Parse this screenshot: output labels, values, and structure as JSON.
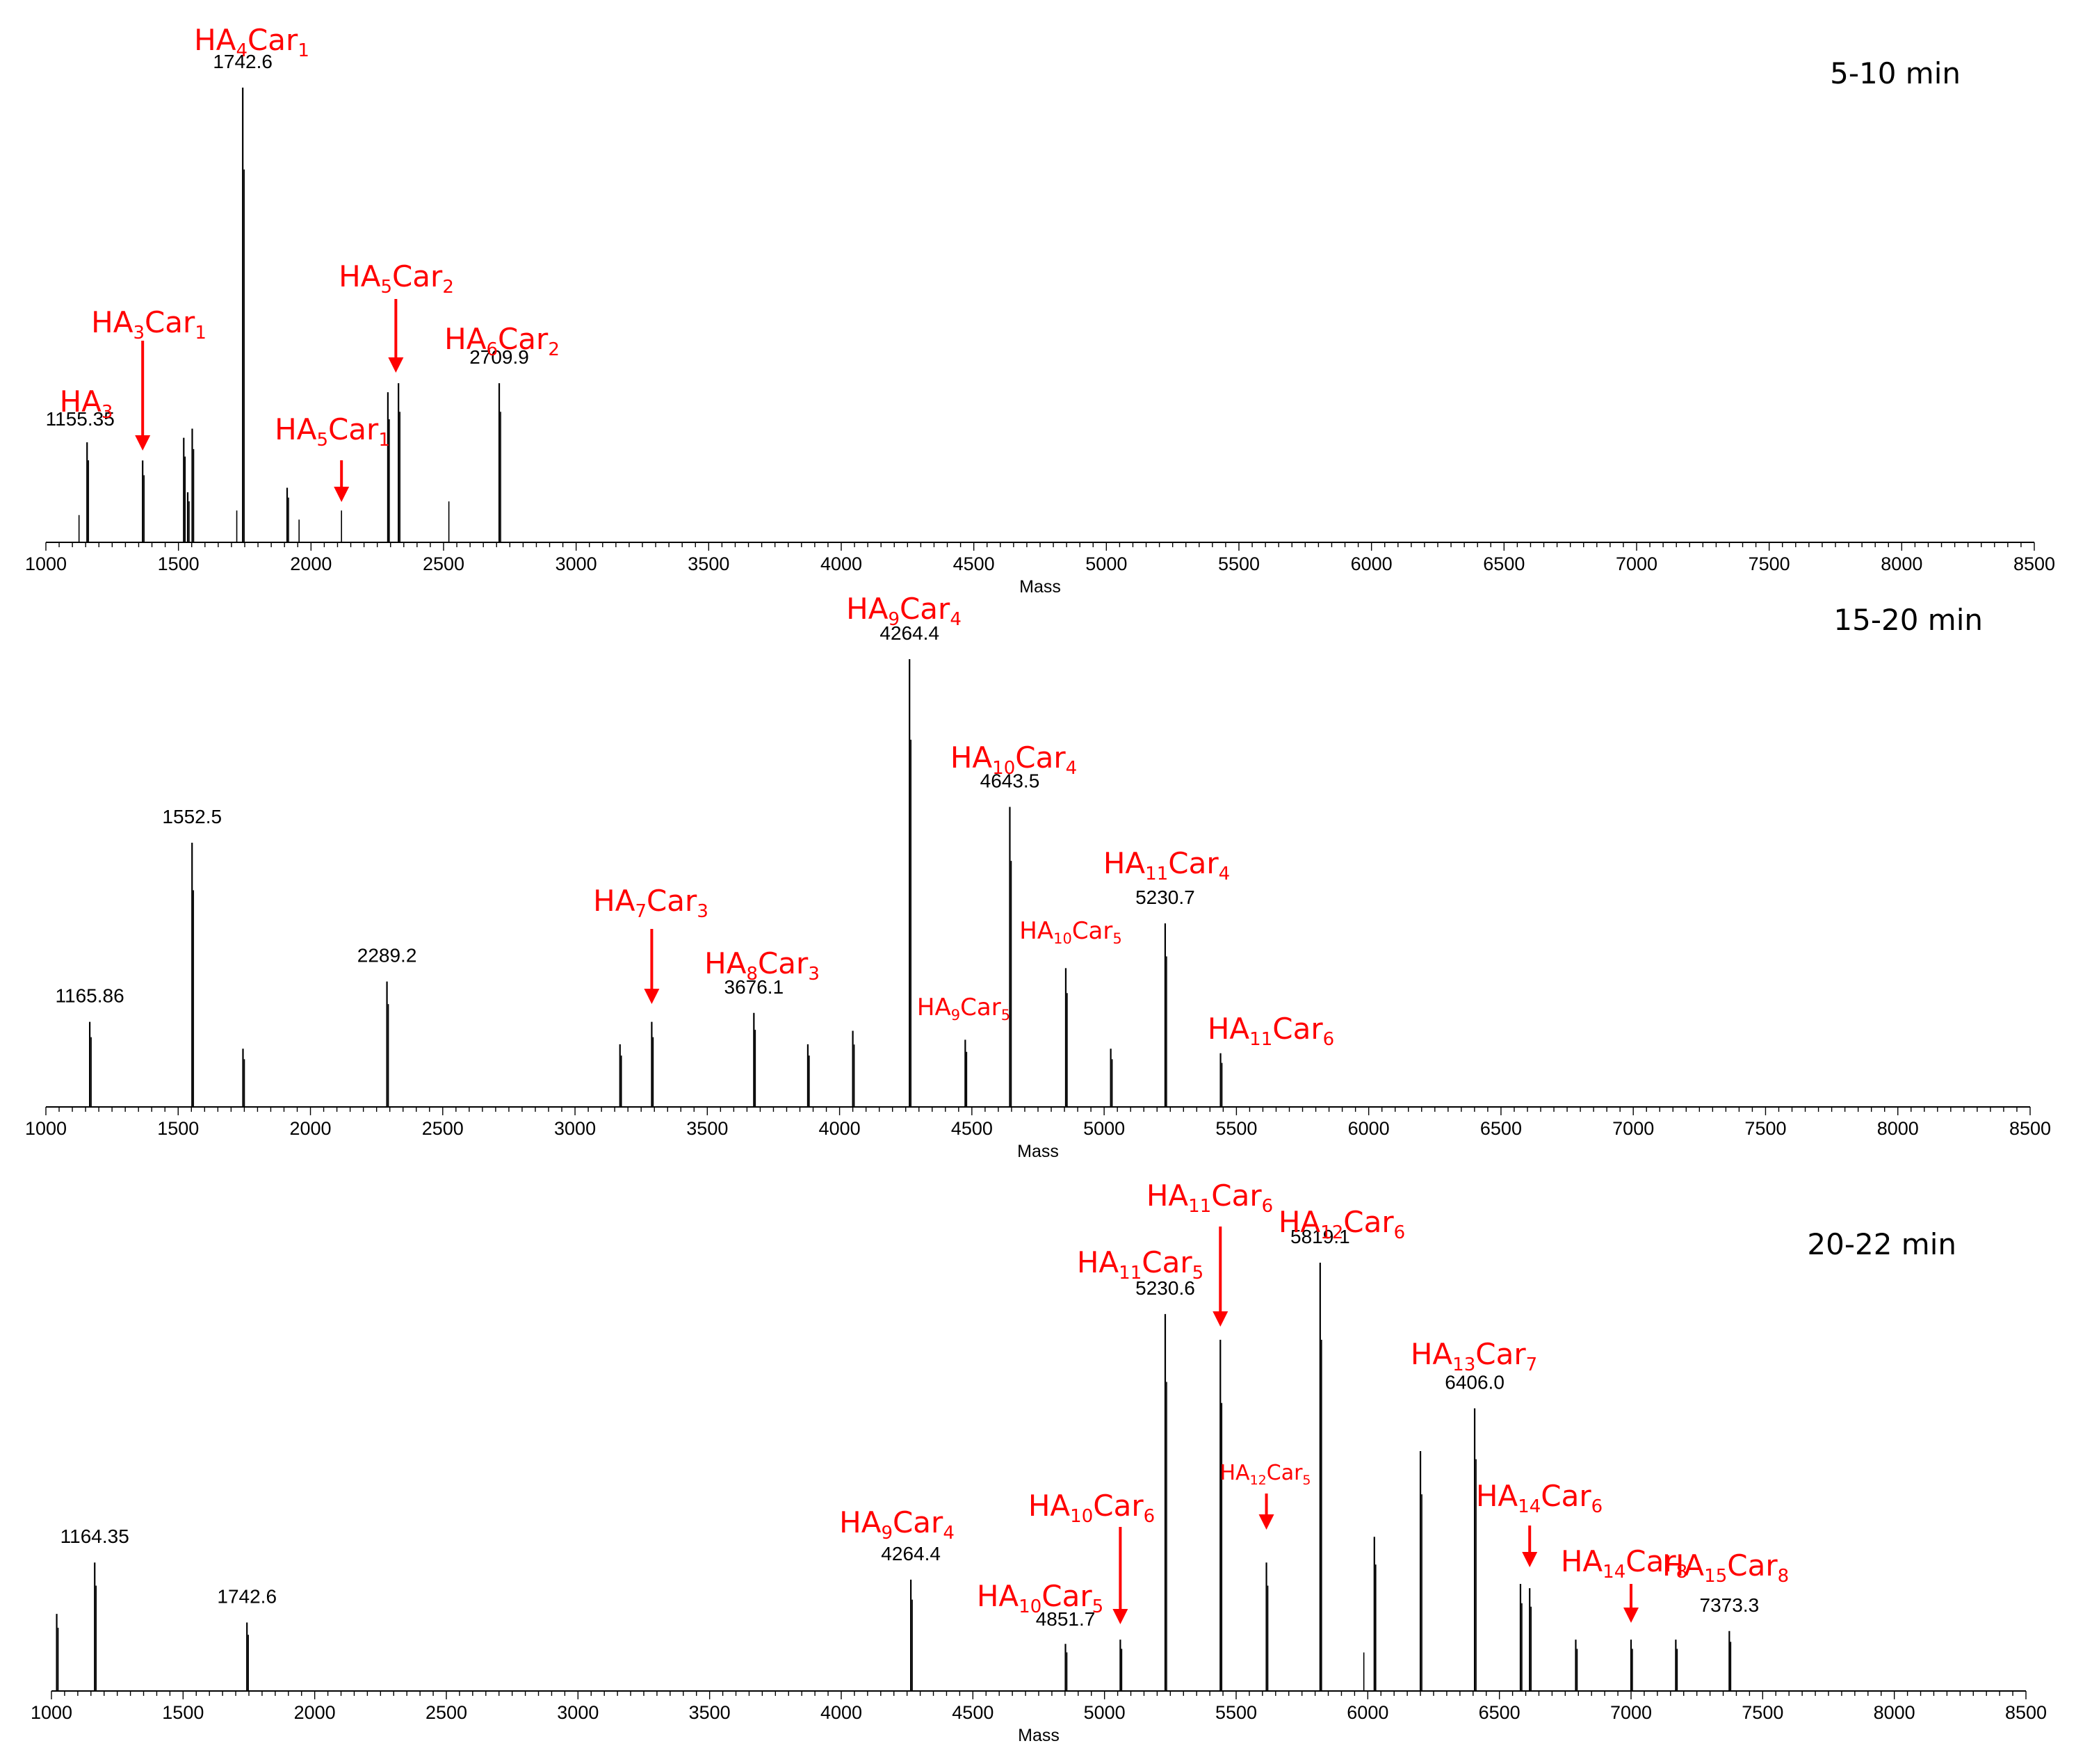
{
  "colors": {
    "annotation": "#ff0000",
    "spectrum": "#000000",
    "background": "#ffffff"
  },
  "chart_data": [
    {
      "type": "bar",
      "title": "5-10 min",
      "xlabel": "Mass",
      "xlim": [
        1000,
        8500
      ],
      "xticks": [
        "1000",
        "1500",
        "2000",
        "2500",
        "3000",
        "3500",
        "4000",
        "4500",
        "5000",
        "5500",
        "6000",
        "6500",
        "7000",
        "7500",
        "8000",
        "8500"
      ],
      "ylim": [
        0,
        100
      ],
      "peaks": [
        {
          "x": 1125,
          "y": 6
        },
        {
          "x": 1155.35,
          "y": 22,
          "label": "1155.35"
        },
        {
          "x": 1365,
          "y": 18
        },
        {
          "x": 1520,
          "y": 23
        },
        {
          "x": 1535,
          "y": 11
        },
        {
          "x": 1552,
          "y": 25
        },
        {
          "x": 1720,
          "y": 7
        },
        {
          "x": 1742.6,
          "y": 100,
          "label": "1742.6"
        },
        {
          "x": 1910,
          "y": 12
        },
        {
          "x": 1955,
          "y": 5
        },
        {
          "x": 2115,
          "y": 7
        },
        {
          "x": 2290,
          "y": 33
        },
        {
          "x": 2330,
          "y": 35
        },
        {
          "x": 2520,
          "y": 9
        },
        {
          "x": 2709.9,
          "y": 35,
          "label": "2709.9"
        }
      ],
      "annotations": [
        {
          "text": "HA3",
          "parts": [
            [
              "HA",
              ""
            ],
            [
              "3",
              "sub"
            ]
          ],
          "anchor_x": 1155.35,
          "arrow": false
        },
        {
          "text": "HA3Car1",
          "parts": [
            [
              "HA",
              ""
            ],
            [
              "3",
              "sub"
            ],
            [
              "Car",
              ""
            ],
            [
              "1",
              "sub"
            ]
          ],
          "anchor_x": 1365,
          "arrow": true
        },
        {
          "text": "HA4Car1",
          "parts": [
            [
              "HA",
              ""
            ],
            [
              "4",
              "sub"
            ],
            [
              "Car",
              ""
            ],
            [
              "1",
              "sub"
            ]
          ],
          "anchor_x": 1742.6,
          "arrow": false
        },
        {
          "text": "HA5Car1",
          "parts": [
            [
              "HA",
              ""
            ],
            [
              "5",
              "sub"
            ],
            [
              "Car",
              ""
            ],
            [
              "1",
              "sub"
            ]
          ],
          "anchor_x": 2115,
          "arrow": true
        },
        {
          "text": "HA5Car2",
          "parts": [
            [
              "HA",
              ""
            ],
            [
              "5",
              "sub"
            ],
            [
              "Car",
              ""
            ],
            [
              "2",
              "sub"
            ]
          ],
          "anchor_x": 2320,
          "arrow": true
        },
        {
          "text": "HA6Car2",
          "parts": [
            [
              "HA",
              ""
            ],
            [
              "6",
              "sub"
            ],
            [
              "Car",
              ""
            ],
            [
              "2",
              "sub"
            ]
          ],
          "anchor_x": 2709.9,
          "arrow": false
        }
      ]
    },
    {
      "type": "bar",
      "title": "15-20 min",
      "xlabel": "Mass",
      "xlim": [
        1000,
        8500
      ],
      "xticks": [
        "1000",
        "1500",
        "2000",
        "2500",
        "3000",
        "3500",
        "4000",
        "4500",
        "5000",
        "5500",
        "6000",
        "6500",
        "7000",
        "7500",
        "8000",
        "8500"
      ],
      "ylim": [
        0,
        100
      ],
      "peaks": [
        {
          "x": 1165.86,
          "y": 19,
          "label": "1165.86"
        },
        {
          "x": 1552.5,
          "y": 59,
          "label": "1552.5"
        },
        {
          "x": 1745,
          "y": 13
        },
        {
          "x": 2289.2,
          "y": 28,
          "label": "2289.2"
        },
        {
          "x": 3170,
          "y": 14
        },
        {
          "x": 3290,
          "y": 19
        },
        {
          "x": 3676.1,
          "y": 21,
          "label": "3676.1"
        },
        {
          "x": 3880,
          "y": 14
        },
        {
          "x": 4050,
          "y": 17
        },
        {
          "x": 4264.4,
          "y": 100,
          "label": "4264.4"
        },
        {
          "x": 4475,
          "y": 15
        },
        {
          "x": 4643.5,
          "y": 67,
          "label": "4643.5"
        },
        {
          "x": 4855,
          "y": 31
        },
        {
          "x": 5025,
          "y": 13
        },
        {
          "x": 5230.7,
          "y": 41,
          "label": "5230.7"
        },
        {
          "x": 5440,
          "y": 12
        }
      ],
      "annotations": [
        {
          "text": "HA7Car3",
          "parts": [
            [
              "HA",
              ""
            ],
            [
              "7",
              "sub"
            ],
            [
              "Car",
              ""
            ],
            [
              "3",
              "sub"
            ]
          ],
          "anchor_x": 3290,
          "arrow": true
        },
        {
          "text": "HA8Car3",
          "parts": [
            [
              "HA",
              ""
            ],
            [
              "8",
              "sub"
            ],
            [
              "Car",
              ""
            ],
            [
              "3",
              "sub"
            ]
          ],
          "anchor_x": 3676.1,
          "arrow": false
        },
        {
          "text": "HA9Car4",
          "parts": [
            [
              "HA",
              ""
            ],
            [
              "9",
              "sub"
            ],
            [
              "Car",
              ""
            ],
            [
              "4",
              "sub"
            ]
          ],
          "anchor_x": 4264.4,
          "arrow": false
        },
        {
          "text": "HA9Car5",
          "parts": [
            [
              "HA",
              ""
            ],
            [
              "9",
              "sub"
            ],
            [
              "Car",
              ""
            ],
            [
              "5",
              "sub"
            ]
          ],
          "anchor_x": 4475,
          "arrow": false
        },
        {
          "text": "HA10Car4",
          "parts": [
            [
              "HA",
              ""
            ],
            [
              "10",
              "sub"
            ],
            [
              "Car",
              ""
            ],
            [
              "4",
              "sub"
            ]
          ],
          "anchor_x": 4643.5,
          "arrow": false
        },
        {
          "text": "HA10Car5",
          "parts": [
            [
              "HA",
              ""
            ],
            [
              "10",
              "sub"
            ],
            [
              "Car",
              ""
            ],
            [
              "5",
              "sub"
            ]
          ],
          "anchor_x": 4855,
          "arrow": false
        },
        {
          "text": "HA11Car4",
          "parts": [
            [
              "HA",
              ""
            ],
            [
              "11",
              "sub"
            ],
            [
              "Car",
              ""
            ],
            [
              "4",
              "sub"
            ]
          ],
          "anchor_x": 5230.7,
          "arrow": false
        },
        {
          "text": "HA11Car6",
          "parts": [
            [
              "HA",
              ""
            ],
            [
              "11",
              "sub"
            ],
            [
              "Car",
              ""
            ],
            [
              "6",
              "sub"
            ]
          ],
          "anchor_x": 5440,
          "arrow": false
        }
      ]
    },
    {
      "type": "bar",
      "title": "20-22 min",
      "xlabel": "Mass",
      "xlim": [
        1000,
        8500
      ],
      "xticks": [
        "1000",
        "1500",
        "2000",
        "2500",
        "3000",
        "3500",
        "4000",
        "4500",
        "5000",
        "5500",
        "6000",
        "6500",
        "7000",
        "7500",
        "8000",
        "8500"
      ],
      "ylim": [
        0,
        100
      ],
      "peaks": [
        {
          "x": 1020,
          "y": 18
        },
        {
          "x": 1164.35,
          "y": 30,
          "label": "1164.35"
        },
        {
          "x": 1742.6,
          "y": 16,
          "label": "1742.6"
        },
        {
          "x": 4264.4,
          "y": 26,
          "label": "4264.4"
        },
        {
          "x": 4851.7,
          "y": 11,
          "label": "4851.7"
        },
        {
          "x": 5060,
          "y": 12
        },
        {
          "x": 5230.6,
          "y": 88,
          "label": "5230.6"
        },
        {
          "x": 5440,
          "y": 82
        },
        {
          "x": 5615,
          "y": 30
        },
        {
          "x": 5819.1,
          "y": 100,
          "label": "5819.1"
        },
        {
          "x": 5985,
          "y": 9
        },
        {
          "x": 6025,
          "y": 36
        },
        {
          "x": 6200,
          "y": 56
        },
        {
          "x": 6406.0,
          "y": 66,
          "label": "6406.0"
        },
        {
          "x": 6580,
          "y": 25
        },
        {
          "x": 6615,
          "y": 24
        },
        {
          "x": 6790,
          "y": 12
        },
        {
          "x": 7000,
          "y": 12
        },
        {
          "x": 7170,
          "y": 12
        },
        {
          "x": 7373.3,
          "y": 14,
          "label": "7373.3"
        }
      ],
      "annotations": [
        {
          "text": "HA9Car4",
          "parts": [
            [
              "HA",
              ""
            ],
            [
              "9",
              "sub"
            ],
            [
              "Car",
              ""
            ],
            [
              "4",
              "sub"
            ]
          ],
          "anchor_x": 4264.4,
          "arrow": false
        },
        {
          "text": "HA10Car5",
          "parts": [
            [
              "HA",
              ""
            ],
            [
              "10",
              "sub"
            ],
            [
              "Car",
              ""
            ],
            [
              "5",
              "sub"
            ]
          ],
          "anchor_x": 4851.7,
          "arrow": false
        },
        {
          "text": "HA10Car6",
          "parts": [
            [
              "HA",
              ""
            ],
            [
              "10",
              "sub"
            ],
            [
              "Car",
              ""
            ],
            [
              "6",
              "sub"
            ]
          ],
          "anchor_x": 5060,
          "arrow": true
        },
        {
          "text": "HA11Car5",
          "parts": [
            [
              "HA",
              ""
            ],
            [
              "11",
              "sub"
            ],
            [
              "Car",
              ""
            ],
            [
              "5",
              "sub"
            ]
          ],
          "anchor_x": 5230.6,
          "arrow": false
        },
        {
          "text": "HA11Car6",
          "parts": [
            [
              "HA",
              ""
            ],
            [
              "11",
              "sub"
            ],
            [
              "Car",
              ""
            ],
            [
              "6",
              "sub"
            ]
          ],
          "anchor_x": 5440,
          "arrow": true
        },
        {
          "text": "HA12Car5",
          "parts": [
            [
              "HA",
              ""
            ],
            [
              "12",
              "sub"
            ],
            [
              "Car",
              ""
            ],
            [
              "5",
              "sub"
            ]
          ],
          "anchor_x": 5615,
          "arrow": true
        },
        {
          "text": "HA12Car6",
          "parts": [
            [
              "HA",
              ""
            ],
            [
              "12",
              "sub"
            ],
            [
              "Car",
              ""
            ],
            [
              "6",
              "sub"
            ]
          ],
          "anchor_x": 5819.1,
          "arrow": false
        },
        {
          "text": "HA13Car7",
          "parts": [
            [
              "HA",
              ""
            ],
            [
              "13",
              "sub"
            ],
            [
              "Car",
              ""
            ],
            [
              "7",
              "sub"
            ]
          ],
          "anchor_x": 6406.0,
          "arrow": false
        },
        {
          "text": "HA14Car6",
          "parts": [
            [
              "HA",
              ""
            ],
            [
              "14",
              "sub"
            ],
            [
              "Car",
              ""
            ],
            [
              "6",
              "sub"
            ]
          ],
          "anchor_x": 6615,
          "arrow": true
        },
        {
          "text": "HA14Car8",
          "parts": [
            [
              "HA",
              ""
            ],
            [
              "14",
              "sub"
            ],
            [
              "Car",
              ""
            ],
            [
              "8",
              "sub"
            ]
          ],
          "anchor_x": 7000,
          "arrow": true
        },
        {
          "text": "HA15Car8",
          "parts": [
            [
              "HA",
              ""
            ],
            [
              "15",
              "sub"
            ],
            [
              "Car",
              ""
            ],
            [
              "8",
              "sub"
            ]
          ],
          "anchor_x": 7373.3,
          "arrow": false
        }
      ]
    }
  ]
}
